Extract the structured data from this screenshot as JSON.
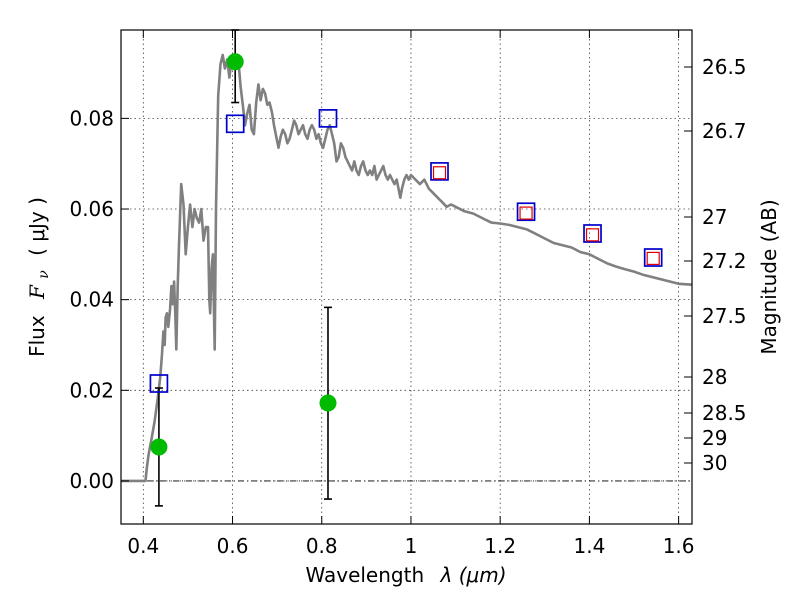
{
  "chart_data": {
    "type": "scatter",
    "xlabel_text": "Wavelength",
    "xlabel_math": "λ (μm)",
    "ylabel_text": "Flux",
    "ylabel_math": "F",
    "ylabel_sub": "ν",
    "ylabel_unit": "( μJy )",
    "y2label": "Magnitude (AB)",
    "xlim": [
      0.35,
      1.63
    ],
    "ylim": [
      -0.0095,
      0.0995
    ],
    "xticks": [
      0.4,
      0.6,
      0.8,
      1.0,
      1.2,
      1.4,
      1.6
    ],
    "xtick_labels": [
      "0.4",
      "0.6",
      "0.8",
      "1",
      "1.2",
      "1.4",
      "1.6"
    ],
    "yticks": [
      0.0,
      0.02,
      0.04,
      0.06,
      0.08
    ],
    "ytick_labels": [
      "0.00",
      "0.02",
      "0.04",
      "0.06",
      "0.08"
    ],
    "mag_ticks": [
      26.5,
      26.7,
      27,
      27.2,
      27.5,
      28,
      28.5,
      29,
      30
    ],
    "mag_tick_labels": [
      "26.5",
      "26.7",
      "27",
      "27.2",
      "27.5",
      "28",
      "28.5",
      "29",
      "30"
    ],
    "grid": true,
    "colors": {
      "model": "#808080",
      "detections": "#00bb00",
      "blue_squares": "#0000cc",
      "red_squares": "#dd0000",
      "errorbars": "#000000",
      "zero_line": "#000000"
    },
    "series": [
      {
        "kind": "line",
        "points": [
          [
            0.35,
            0.0
          ],
          [
            0.405,
            0.0
          ],
          [
            0.408,
            0.003
          ],
          [
            0.412,
            0.006
          ],
          [
            0.418,
            0.009
          ],
          [
            0.425,
            0.013
          ],
          [
            0.432,
            0.018
          ],
          [
            0.438,
            0.023
          ],
          [
            0.442,
            0.028
          ],
          [
            0.445,
            0.033
          ],
          [
            0.448,
            0.03
          ],
          [
            0.45,
            0.036
          ],
          [
            0.453,
            0.037
          ],
          [
            0.456,
            0.034
          ],
          [
            0.46,
            0.038
          ],
          [
            0.463,
            0.043
          ],
          [
            0.466,
            0.039
          ],
          [
            0.469,
            0.044
          ],
          [
            0.472,
            0.036
          ],
          [
            0.474,
            0.029
          ],
          [
            0.477,
            0.043
          ],
          [
            0.48,
            0.052
          ],
          [
            0.485,
            0.0655
          ],
          [
            0.49,
            0.061
          ],
          [
            0.495,
            0.05
          ],
          [
            0.5,
            0.056
          ],
          [
            0.505,
            0.061
          ],
          [
            0.51,
            0.056
          ],
          [
            0.515,
            0.06
          ],
          [
            0.52,
            0.058
          ],
          [
            0.525,
            0.057
          ],
          [
            0.53,
            0.06
          ],
          [
            0.535,
            0.053
          ],
          [
            0.54,
            0.056
          ],
          [
            0.545,
            0.056
          ],
          [
            0.548,
            0.04
          ],
          [
            0.55,
            0.037
          ],
          [
            0.553,
            0.047
          ],
          [
            0.556,
            0.05
          ],
          [
            0.56,
            0.029
          ],
          [
            0.563,
            0.06
          ],
          [
            0.568,
            0.085
          ],
          [
            0.573,
            0.092
          ],
          [
            0.578,
            0.094
          ],
          [
            0.583,
            0.091
          ],
          [
            0.588,
            0.093
          ],
          [
            0.593,
            0.089
          ],
          [
            0.598,
            0.093
          ],
          [
            0.603,
            0.0935
          ],
          [
            0.608,
            0.092
          ],
          [
            0.613,
            0.093
          ],
          [
            0.618,
            0.087
          ],
          [
            0.623,
            0.083
          ],
          [
            0.628,
            0.0785
          ],
          [
            0.633,
            0.081
          ],
          [
            0.638,
            0.083
          ],
          [
            0.643,
            0.0775
          ],
          [
            0.648,
            0.0765
          ],
          [
            0.653,
            0.0835
          ],
          [
            0.658,
            0.0875
          ],
          [
            0.663,
            0.084
          ],
          [
            0.668,
            0.0865
          ],
          [
            0.673,
            0.0855
          ],
          [
            0.678,
            0.083
          ],
          [
            0.683,
            0.0835
          ],
          [
            0.688,
            0.0815
          ],
          [
            0.693,
            0.0785
          ],
          [
            0.698,
            0.076
          ],
          [
            0.703,
            0.0735
          ],
          [
            0.708,
            0.076
          ],
          [
            0.713,
            0.0775
          ],
          [
            0.718,
            0.0765
          ],
          [
            0.723,
            0.0745
          ],
          [
            0.728,
            0.0755
          ],
          [
            0.733,
            0.0775
          ],
          [
            0.738,
            0.0795
          ],
          [
            0.743,
            0.0785
          ],
          [
            0.748,
            0.0765
          ],
          [
            0.753,
            0.0775
          ],
          [
            0.758,
            0.0785
          ],
          [
            0.763,
            0.0765
          ],
          [
            0.768,
            0.0755
          ],
          [
            0.773,
            0.0775
          ],
          [
            0.778,
            0.0785
          ],
          [
            0.783,
            0.0775
          ],
          [
            0.788,
            0.0755
          ],
          [
            0.793,
            0.0765
          ],
          [
            0.798,
            0.0745
          ],
          [
            0.803,
            0.0735
          ],
          [
            0.808,
            0.0755
          ],
          [
            0.813,
            0.0775
          ],
          [
            0.818,
            0.0785
          ],
          [
            0.823,
            0.0765
          ],
          [
            0.828,
            0.0745
          ],
          [
            0.833,
            0.0705
          ],
          [
            0.838,
            0.0715
          ],
          [
            0.843,
            0.0745
          ],
          [
            0.848,
            0.0735
          ],
          [
            0.853,
            0.0715
          ],
          [
            0.858,
            0.0705
          ],
          [
            0.863,
            0.0695
          ],
          [
            0.868,
            0.0685
          ],
          [
            0.873,
            0.0705
          ],
          [
            0.878,
            0.0685
          ],
          [
            0.883,
            0.0675
          ],
          [
            0.888,
            0.0695
          ],
          [
            0.893,
            0.0705
          ],
          [
            0.898,
            0.0685
          ],
          [
            0.903,
            0.0675
          ],
          [
            0.908,
            0.0685
          ],
          [
            0.913,
            0.0675
          ],
          [
            0.918,
            0.0695
          ],
          [
            0.923,
            0.0665
          ],
          [
            0.928,
            0.0675
          ],
          [
            0.933,
            0.0685
          ],
          [
            0.938,
            0.0695
          ],
          [
            0.943,
            0.0675
          ],
          [
            0.948,
            0.0665
          ],
          [
            0.953,
            0.0675
          ],
          [
            0.958,
            0.0665
          ],
          [
            0.963,
            0.0655
          ],
          [
            0.968,
            0.0665
          ],
          [
            0.972,
            0.0645
          ],
          [
            0.976,
            0.0625
          ],
          [
            0.98,
            0.0645
          ],
          [
            0.985,
            0.0665
          ],
          [
            0.99,
            0.0675
          ],
          [
            0.995,
            0.0665
          ],
          [
            1.0,
            0.0675
          ],
          [
            1.01,
            0.0665
          ],
          [
            1.02,
            0.0655
          ],
          [
            1.03,
            0.0665
          ],
          [
            1.04,
            0.0645
          ],
          [
            1.05,
            0.0635
          ],
          [
            1.06,
            0.0625
          ],
          [
            1.07,
            0.0615
          ],
          [
            1.08,
            0.0605
          ],
          [
            1.09,
            0.061
          ],
          [
            1.1,
            0.0605
          ],
          [
            1.12,
            0.0595
          ],
          [
            1.14,
            0.059
          ],
          [
            1.16,
            0.058
          ],
          [
            1.18,
            0.057
          ],
          [
            1.2,
            0.0568
          ],
          [
            1.22,
            0.0565
          ],
          [
            1.24,
            0.056
          ],
          [
            1.26,
            0.0555
          ],
          [
            1.28,
            0.0545
          ],
          [
            1.3,
            0.0535
          ],
          [
            1.32,
            0.0525
          ],
          [
            1.34,
            0.052
          ],
          [
            1.36,
            0.0515
          ],
          [
            1.38,
            0.0505
          ],
          [
            1.4,
            0.05
          ],
          [
            1.42,
            0.049
          ],
          [
            1.44,
            0.048
          ],
          [
            1.46,
            0.0473
          ],
          [
            1.48,
            0.0467
          ],
          [
            1.5,
            0.0462
          ],
          [
            1.52,
            0.0455
          ],
          [
            1.54,
            0.045
          ],
          [
            1.56,
            0.0445
          ],
          [
            1.58,
            0.044
          ],
          [
            1.6,
            0.0435
          ],
          [
            1.63,
            0.0433
          ]
        ]
      },
      {
        "kind": "detections",
        "points": [
          {
            "x": 0.435,
            "y": 0.0075,
            "ylo": -0.0055,
            "yhi": 0.0205
          },
          {
            "x": 0.606,
            "y": 0.0925,
            "ylo": 0.0835,
            "yhi": 0.0995
          },
          {
            "x": 0.814,
            "y": 0.0172,
            "ylo": -0.004,
            "yhi": 0.0383
          }
        ]
      },
      {
        "kind": "blue_squares",
        "points": [
          [
            0.435,
            0.0215
          ],
          [
            0.606,
            0.0788
          ],
          [
            0.814,
            0.08
          ],
          [
            1.064,
            0.0683
          ],
          [
            1.258,
            0.0594
          ],
          [
            1.407,
            0.0546
          ],
          [
            1.543,
            0.0493
          ]
        ]
      },
      {
        "kind": "red_squares",
        "points": [
          [
            1.064,
            0.068
          ],
          [
            1.258,
            0.0591
          ],
          [
            1.407,
            0.0543
          ],
          [
            1.543,
            0.0491
          ]
        ]
      }
    ]
  }
}
